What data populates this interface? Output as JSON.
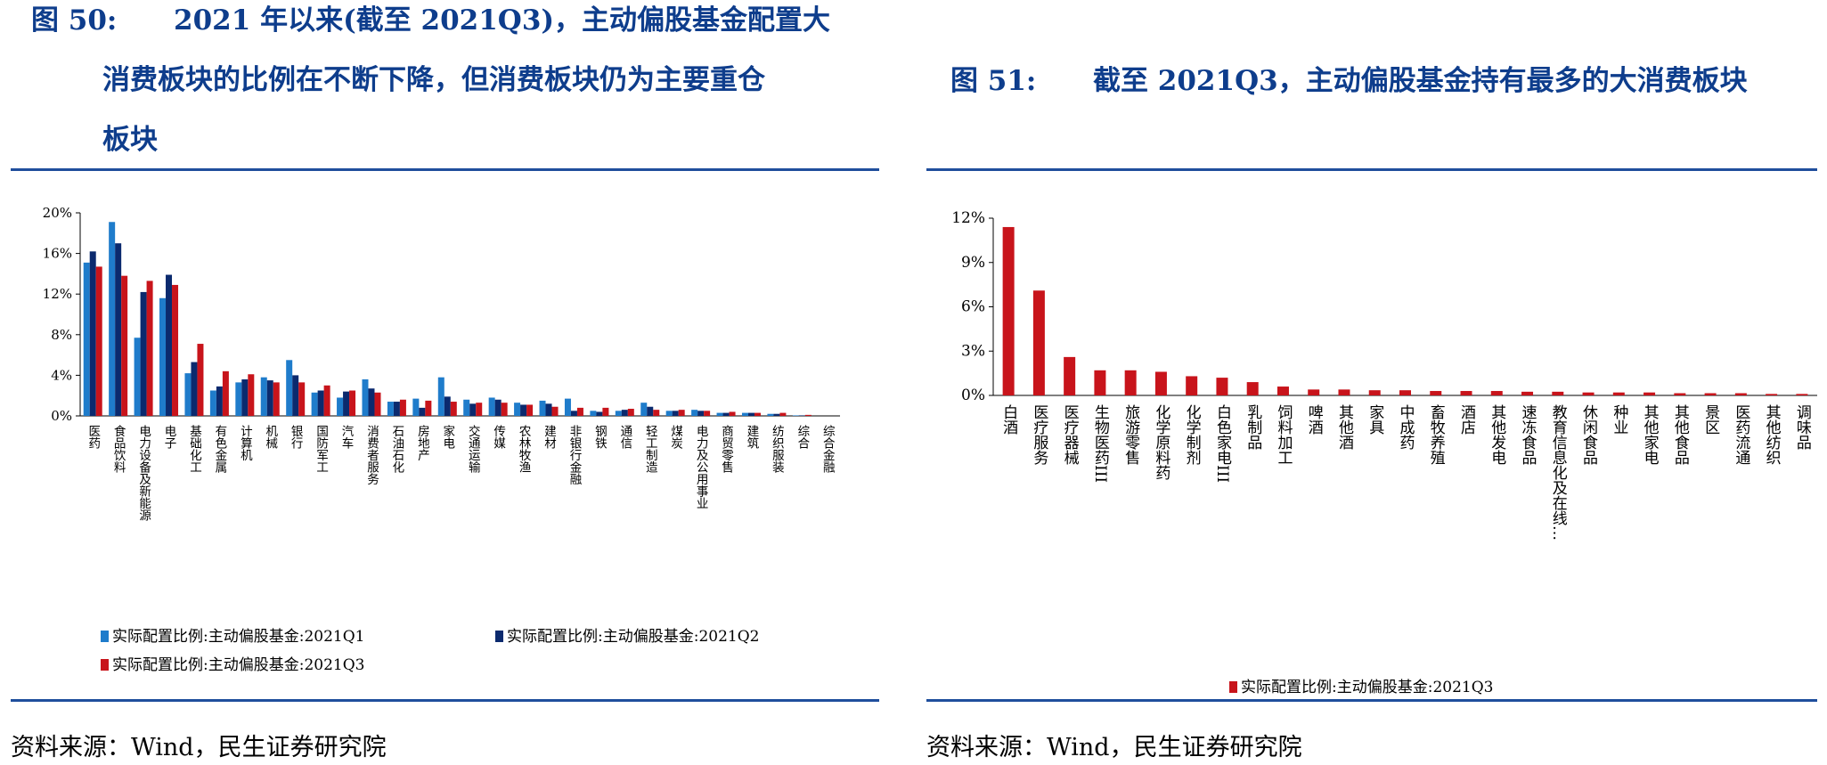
{
  "left": {
    "figure_number": "图 50:",
    "title_lines": [
      "2021 年以来(截至 2021Q3)，主动偏股基金配置大",
      "消费板块的比例在不断下降，但消费板块仍为主要重仓",
      "板块"
    ],
    "source": "资料来源：Wind，民生证券研究院"
  },
  "right": {
    "figure_number": "图 51:",
    "title": "截至 2021Q3，主动偏股基金持有最多的大消费板块",
    "source": "资料来源：Wind，民生证券研究院"
  },
  "colors": {
    "q1": "#1f7ccb",
    "q2": "#0b2a6e",
    "q3": "#c8141b",
    "title": "#0e3d8c",
    "rule": "#1f4e9c"
  },
  "chart_data": [
    {
      "type": "bar",
      "ylim": [
        0,
        20
      ],
      "yticks": [
        "0%",
        "4%",
        "8%",
        "12%",
        "16%",
        "20%"
      ],
      "legend_position": "bottom",
      "categories": [
        "医药",
        "食品饮料",
        "电力设备及新能源",
        "电子",
        "基础化工",
        "有色金属",
        "计算机",
        "机械",
        "银行",
        "国防军工",
        "汽车",
        "消费者服务",
        "石油石化",
        "房地产",
        "家电",
        "交通运输",
        "传媒",
        "农林牧渔",
        "建材",
        "非银行金融",
        "钢铁",
        "通信",
        "轻工制造",
        "煤炭",
        "电力及公用事业",
        "商贸零售",
        "建筑",
        "纺织服装",
        "综合",
        "综合金融"
      ],
      "series": [
        {
          "name": "实际配置比例:主动偏股基金:2021Q1",
          "values": [
            15.1,
            19.1,
            7.7,
            11.6,
            4.2,
            2.5,
            3.3,
            3.8,
            5.5,
            2.3,
            1.8,
            3.6,
            1.4,
            1.7,
            3.8,
            1.6,
            1.8,
            1.3,
            1.5,
            1.7,
            0.5,
            0.5,
            1.3,
            0.5,
            0.6,
            0.3,
            0.3,
            0.2,
            0.05,
            0.0
          ]
        },
        {
          "name": "实际配置比例:主动偏股基金:2021Q2",
          "values": [
            16.2,
            17.0,
            12.2,
            13.9,
            5.3,
            2.9,
            3.6,
            3.5,
            4.0,
            2.5,
            2.4,
            2.7,
            1.4,
            0.8,
            1.9,
            1.2,
            1.6,
            1.1,
            1.2,
            0.5,
            0.4,
            0.6,
            0.9,
            0.5,
            0.5,
            0.3,
            0.3,
            0.2,
            0.05,
            0.0
          ]
        },
        {
          "name": "实际配置比例:主动偏股基金:2021Q3",
          "values": [
            14.7,
            13.8,
            13.3,
            12.9,
            7.1,
            4.4,
            4.1,
            3.3,
            3.3,
            3.0,
            2.5,
            2.3,
            1.6,
            1.5,
            1.4,
            1.3,
            1.3,
            1.1,
            0.9,
            0.8,
            0.8,
            0.7,
            0.6,
            0.6,
            0.5,
            0.4,
            0.3,
            0.3,
            0.1,
            0.0
          ]
        }
      ]
    },
    {
      "type": "bar",
      "ylim": [
        0,
        12
      ],
      "yticks": [
        "0%",
        "3%",
        "6%",
        "9%",
        "12%"
      ],
      "legend_position": "bottom",
      "categories": [
        "白酒",
        "医疗服务",
        "医疗器械",
        "生物医药III",
        "旅游零售",
        "化学原料药",
        "化学制剂",
        "白色家电III",
        "乳制品",
        "饲料加工",
        "啤酒",
        "其他酒",
        "家具",
        "中成药",
        "畜牧养殖",
        "酒店",
        "其他发电",
        "速冻食品",
        "教育信息化及在线…",
        "休闲食品",
        "种业",
        "其他家电",
        "其他食品",
        "景区",
        "医药流通",
        "其他纺织",
        "调味品"
      ],
      "series": [
        {
          "name": "实际配置比例:主动偏股基金:2021Q3",
          "values": [
            11.4,
            7.1,
            2.6,
            1.7,
            1.7,
            1.6,
            1.3,
            1.2,
            0.9,
            0.6,
            0.4,
            0.4,
            0.35,
            0.35,
            0.3,
            0.3,
            0.3,
            0.25,
            0.25,
            0.2,
            0.2,
            0.2,
            0.15,
            0.15,
            0.15,
            0.1,
            0.1
          ]
        }
      ]
    }
  ]
}
